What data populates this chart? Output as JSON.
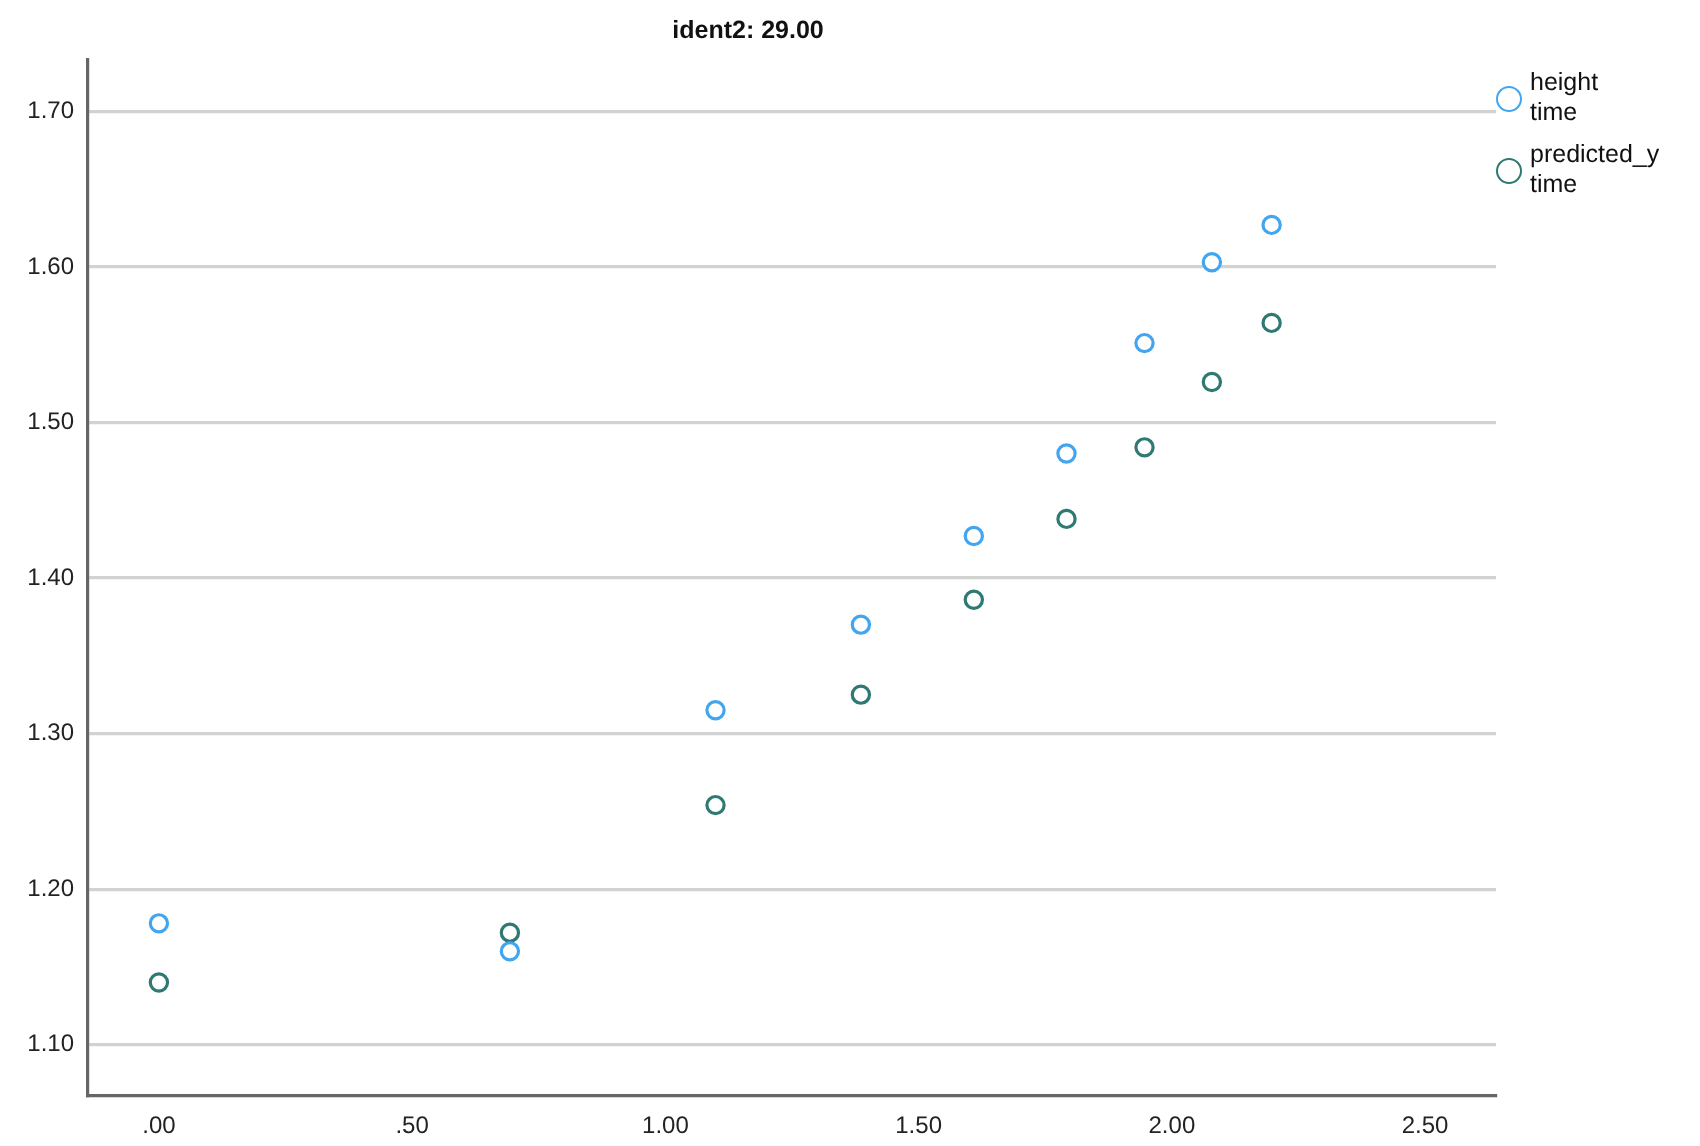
{
  "chart_data": {
    "type": "scatter",
    "title": "ident2: 29.00",
    "x": [
      0,
      0.693,
      1.099,
      1.386,
      1.609,
      1.792,
      1.946,
      2.079,
      2.197
    ],
    "series": [
      {
        "name": "height time",
        "color": "#42a5f0",
        "values": [
          1.178,
          1.16,
          1.315,
          1.37,
          1.427,
          1.48,
          1.551,
          1.603,
          1.627
        ]
      },
      {
        "name": "predicted_y time",
        "color": "#2e7a72",
        "values": [
          1.14,
          1.172,
          1.254,
          1.325,
          1.386,
          1.438,
          1.484,
          1.526,
          1.564
        ]
      }
    ],
    "xlim": [
      -0.14,
      2.64
    ],
    "ylim": [
      1.067,
      1.733
    ],
    "xticks": [
      {
        "value": 0,
        "label": ".00"
      },
      {
        "value": 0.5,
        "label": ".50"
      },
      {
        "value": 1,
        "label": "1.00"
      },
      {
        "value": 1.5,
        "label": "1.50"
      },
      {
        "value": 2,
        "label": "2.00"
      },
      {
        "value": 2.5,
        "label": "2.50"
      }
    ],
    "yticks": [
      {
        "value": 1.1,
        "label": "1.10"
      },
      {
        "value": 1.2,
        "label": "1.20"
      },
      {
        "value": 1.3,
        "label": "1.30"
      },
      {
        "value": 1.4,
        "label": "1.40"
      },
      {
        "value": 1.5,
        "label": "1.50"
      },
      {
        "value": 1.6,
        "label": "1.60"
      },
      {
        "value": 1.7,
        "label": "1.70"
      }
    ],
    "grid": "y",
    "legend": "top right",
    "marker": "circle"
  }
}
